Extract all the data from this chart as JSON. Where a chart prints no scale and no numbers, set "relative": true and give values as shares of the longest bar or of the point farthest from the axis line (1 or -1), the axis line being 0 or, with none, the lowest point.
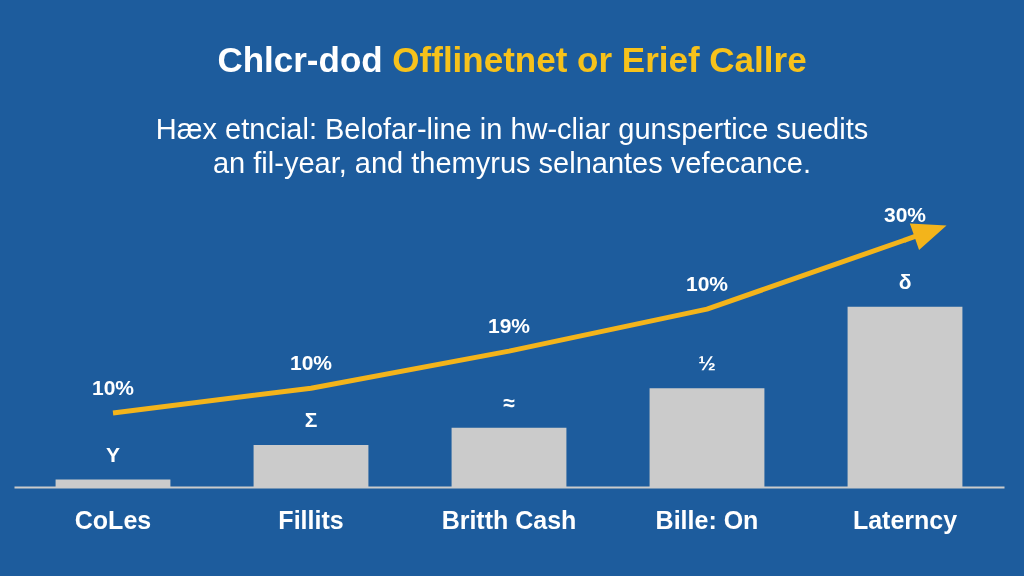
{
  "chart_data": {
    "type": "bar",
    "title": "Chlcr-dod Offlinetnet or Erief Callre",
    "subtitle": "Hæx etncial: Belofar-line in hw-cliar gunspertice suedits an fil-year, and themyrus selnantes vefecance.",
    "categories": [
      "CoLes",
      "Fillits",
      "Britth Cash",
      "Bille: On",
      "Laterncy"
    ],
    "relative": true,
    "series": [
      {
        "color": "#cbcbcb",
        "values": [
          0.03,
          0.17,
          0.24,
          0.4,
          0.73
        ]
      },
      {
        "type": "line",
        "color": "#f3b41b",
        "values": [
          0.3,
          0.4,
          0.55,
          0.72,
          1
        ]
      }
    ],
    "annotations": [
      {
        "text": "10%",
        "x": "CoLes",
        "y": 0.3
      },
      {
        "text": "10%",
        "x": "Fillits",
        "y": 0.4
      },
      {
        "text": "19%",
        "x": "Britth Cash",
        "y": 0.55
      },
      {
        "text": "10%",
        "x": "Bille: On",
        "y": 0.72
      },
      {
        "text": "30%",
        "x": "Laterncy",
        "y": 1
      },
      {
        "text": "Y",
        "x": "CoLes",
        "y": 0.03
      },
      {
        "text": "Σ",
        "x": "Fillits",
        "y": 0.17
      },
      {
        "text": "≈",
        "x": "Britth Cash",
        "y": 0.24
      },
      {
        "text": "½",
        "x": "Bille: On",
        "y": 0.4
      },
      {
        "text": "δ",
        "x": "Laterncy",
        "y": 0.73
      }
    ]
  }
}
